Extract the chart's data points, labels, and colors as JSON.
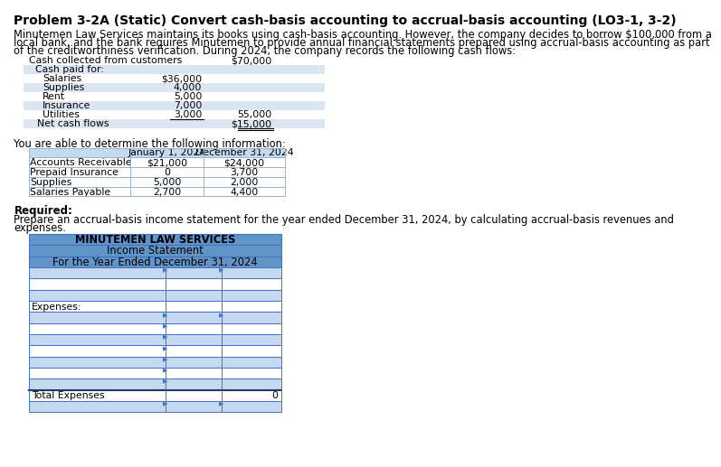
{
  "title": "Problem 3-2A (Static) Convert cash-basis accounting to accrual-basis accounting (LO3-1, 3-2)",
  "body_text_line1": "Minutemen Law Services maintains its books using cash-basis accounting. However, the company decides to borrow $100,000 from a",
  "body_text_line2": "local bank, and the bank requires Minutemen to provide annual financial statements prepared using accrual-basis accounting as part",
  "body_text_line3": "of the creditworthiness verification. During 2024, the company records the following cash flows:",
  "cash_flow_label": "Cash collected from customers",
  "cash_flow_value": "$70,000",
  "cash_paid_label": "Cash paid for:",
  "cash_items": [
    "Salaries",
    "Supplies",
    "Rent",
    "Insurance",
    "Utilities"
  ],
  "cash_col1": [
    "$36,000",
    "4,000",
    "5,000",
    "7,000",
    "3,000"
  ],
  "cash_subtotal": "55,000",
  "net_cash_label": "Net cash flows",
  "net_cash_value": "$15,000",
  "info_header": "You are able to determine the following information:",
  "table1_col1_header": "",
  "table1_col2_header": "January 1, 2024",
  "table1_col3_header": "December 31, 2024",
  "table1_rows": [
    [
      "Accounts Receivable",
      "$21,000",
      "$24,000"
    ],
    [
      "Prepaid Insurance",
      "0",
      "3,700"
    ],
    [
      "Supplies",
      "5,000",
      "2,000"
    ],
    [
      "Salaries Payable",
      "2,700",
      "4,400"
    ]
  ],
  "required_label": "Required:",
  "required_text_line1": "Prepare an accrual-basis income statement for the year ended December 31, 2024, by calculating accrual-basis revenues and",
  "required_text_line2": "expenses.",
  "is_title1": "MINUTEMEN LAW SERVICES",
  "is_title2": "Income Statement",
  "is_title3": "For the Year Ended December 31, 2024",
  "is_header_bg": "#6195C8",
  "is_row_bg_blue": "#C5D9F1",
  "is_row_bg_white": "#FFFFFF",
  "is_border_dark": "#1F3864",
  "is_border_blue": "#4472C4",
  "is_expenses_label": "Expenses:",
  "is_total_label": "Total Expenses",
  "is_total_value": "0",
  "num_revenue_rows": 3,
  "num_expense_rows": 7,
  "cf_row_bg_light": "#DCE6F1",
  "cf_row_bg_white": "#FFFFFF",
  "table1_header_bg": "#C5D9F1",
  "table1_border": "#95B3D7"
}
